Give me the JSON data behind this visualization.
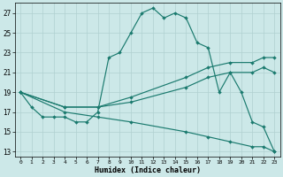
{
  "xlabel": "Humidex (Indice chaleur)",
  "xlim": [
    -0.5,
    23.5
  ],
  "ylim": [
    12.5,
    28.0
  ],
  "yticks": [
    13,
    15,
    17,
    19,
    21,
    23,
    25,
    27
  ],
  "xticks": [
    0,
    1,
    2,
    3,
    4,
    5,
    6,
    7,
    8,
    9,
    10,
    11,
    12,
    13,
    14,
    15,
    16,
    17,
    18,
    19,
    20,
    21,
    22,
    23
  ],
  "line_color": "#1a7a6e",
  "bg_color": "#cce8e8",
  "grid_color": "#b0d0d0",
  "lines": [
    {
      "x": [
        0,
        1,
        2,
        3,
        4,
        5,
        6,
        7,
        8,
        9,
        10,
        11,
        12,
        13,
        14,
        15,
        16,
        17,
        18,
        19,
        20,
        21,
        22,
        23
      ],
      "y": [
        19,
        17.5,
        16.5,
        16.5,
        16.5,
        16.0,
        16.0,
        17.0,
        22.5,
        23.0,
        25.0,
        27.0,
        27.5,
        26.5,
        27.0,
        26.5,
        24.0,
        23.5,
        19.0,
        21.0,
        19.0,
        16.0,
        15.5,
        13.0
      ]
    },
    {
      "x": [
        0,
        4,
        7,
        10,
        15,
        17,
        19,
        21,
        22,
        23
      ],
      "y": [
        19,
        17.5,
        17.5,
        18.5,
        20.5,
        21.5,
        22.0,
        22.0,
        22.5,
        22.5
      ]
    },
    {
      "x": [
        0,
        4,
        7,
        10,
        15,
        17,
        19,
        21,
        22,
        23
      ],
      "y": [
        19,
        17.5,
        17.5,
        18.0,
        19.5,
        20.5,
        21.0,
        21.0,
        21.5,
        21.0
      ]
    },
    {
      "x": [
        0,
        4,
        7,
        10,
        15,
        17,
        19,
        21,
        22,
        23
      ],
      "y": [
        19,
        17.0,
        16.5,
        16.0,
        15.0,
        14.5,
        14.0,
        13.5,
        13.5,
        13.0
      ]
    }
  ]
}
